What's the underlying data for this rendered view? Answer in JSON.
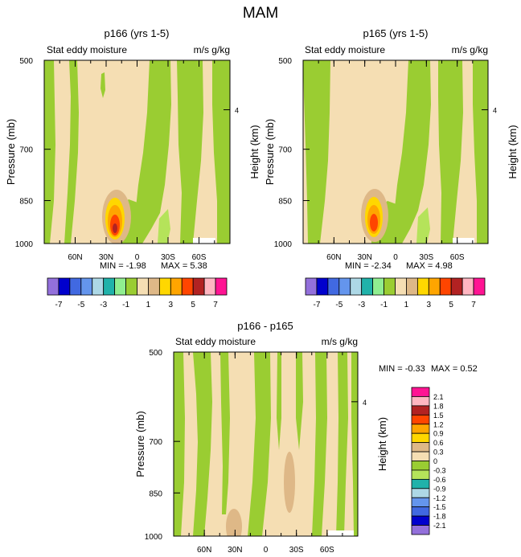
{
  "figure": {
    "title": "MAM"
  },
  "chart_data": [
    {
      "id": "p166",
      "type": "heatmap",
      "title": "p166 (yrs 1-5)",
      "left_label": "Stat eddy moisture",
      "right_label": "m/s g/kg",
      "ylabel": "Pressure (mb)",
      "y2label": "Height (km)",
      "y_ticks": [
        "500",
        "700",
        "850",
        "1000"
      ],
      "y2_ticks": [
        "4"
      ],
      "x_ticks": [
        "60N",
        "30N",
        "0",
        "30S",
        "60S"
      ],
      "xlim": [
        90,
        -90
      ],
      "ylim": [
        1000,
        500
      ],
      "min_label": "MIN = -1.98",
      "max_label": "MAX = 5.38",
      "min": -1.98,
      "max": 5.38
    },
    {
      "id": "p165",
      "type": "heatmap",
      "title": "p165 (yrs 1-5)",
      "left_label": "Stat eddy moisture",
      "right_label": "m/s g/kg",
      "ylabel": "Pressure (mb)",
      "y2label": "Height (km)",
      "y_ticks": [
        "500",
        "700",
        "850",
        "1000"
      ],
      "y2_ticks": [
        "4"
      ],
      "x_ticks": [
        "60N",
        "30N",
        "0",
        "30S",
        "60S"
      ],
      "xlim": [
        90,
        -90
      ],
      "ylim": [
        1000,
        500
      ],
      "min_label": "MIN = -2.34",
      "max_label": "MAX = 4.98",
      "min": -2.34,
      "max": 4.98
    },
    {
      "id": "diff",
      "type": "heatmap",
      "title": "p166 - p165",
      "left_label": "Stat eddy moisture",
      "right_label": "m/s g/kg",
      "ylabel": "Pressure (mb)",
      "y2label": "Height (km)",
      "y_ticks": [
        "500",
        "700",
        "850",
        "1000"
      ],
      "y2_ticks": [
        "4"
      ],
      "x_ticks": [
        "60N",
        "30N",
        "0",
        "30S",
        "60S"
      ],
      "xlim": [
        90,
        -90
      ],
      "ylim": [
        1000,
        500
      ],
      "min_label": "MIN = -0.33",
      "max_label": "MAX = 0.52",
      "min": -0.33,
      "max": 0.52
    }
  ],
  "colorbar_main": {
    "colors": [
      "#9370db",
      "#0000cd",
      "#4169e1",
      "#6495ed",
      "#add8e6",
      "#20b2aa",
      "#90ee90",
      "#9acd32",
      "#f5deb3",
      "#deb887",
      "#ffd700",
      "#ffa500",
      "#ff4500",
      "#b22222",
      "#ffb6c1",
      "#ff1493"
    ],
    "labels": [
      "-7",
      "-5",
      "-3",
      "-1",
      "1",
      "3",
      "5",
      "7"
    ]
  },
  "colorbar_diff": {
    "colors": [
      "#ff1493",
      "#ffb6c1",
      "#b22222",
      "#ff4500",
      "#ffa500",
      "#ffd700",
      "#deb887",
      "#f5deb3",
      "#9acd32",
      "#b5e35a",
      "#20b2aa",
      "#add8e6",
      "#6495ed",
      "#4169e1",
      "#0000cd",
      "#9370db"
    ],
    "labels": [
      "2.1",
      "1.8",
      "1.5",
      "1.2",
      "0.9",
      "0.6",
      "0.3",
      "0",
      "-0.3",
      "-0.6",
      "-0.9",
      "-1.2",
      "-1.5",
      "-1.8",
      "-2.1"
    ]
  }
}
